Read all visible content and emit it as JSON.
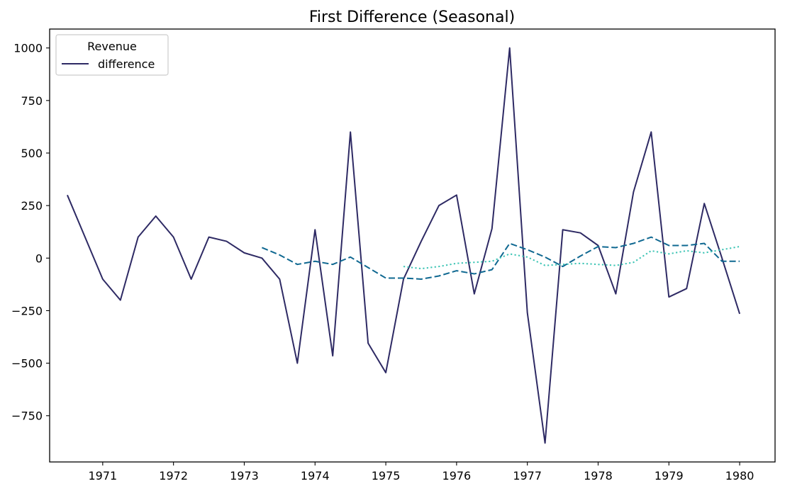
{
  "chart_data": {
    "type": "line",
    "title": "First Difference (Seasonal)",
    "xlabel": "",
    "ylabel": "",
    "xlim": [
      1970.25,
      1980.5
    ],
    "ylim": [
      -970,
      1090
    ],
    "x_ticks": [
      1971,
      1972,
      1973,
      1974,
      1975,
      1976,
      1977,
      1978,
      1979,
      1980
    ],
    "y_ticks": [
      -750,
      -500,
      -250,
      0,
      250,
      500,
      750,
      1000
    ],
    "grid": false,
    "legend": {
      "title": "Revenue",
      "placement": "top-left",
      "entries": [
        "difference"
      ]
    },
    "series": [
      {
        "name": "difference",
        "style": "solid",
        "color": "#2e2a64",
        "x": [
          1970.5,
          1970.75,
          1971,
          1971.25,
          1971.5,
          1971.75,
          1972,
          1972.25,
          1972.5,
          1972.75,
          1973,
          1973.25,
          1973.5,
          1973.75,
          1974,
          1974.25,
          1974.5,
          1974.75,
          1975,
          1975.25,
          1975.5,
          1975.75,
          1976,
          1976.25,
          1976.5,
          1976.75,
          1977,
          1977.25,
          1977.5,
          1977.75,
          1978,
          1978.25,
          1978.5,
          1978.75,
          1979,
          1979.25,
          1979.5,
          1979.75,
          1980
        ],
        "values": [
          300,
          100,
          -100,
          -200,
          100,
          200,
          100,
          -100,
          100,
          80,
          25,
          0,
          -100,
          -500,
          135,
          -465,
          600,
          -405,
          -545,
          -100,
          80,
          250,
          300,
          -170,
          140,
          1000,
          -260,
          -880,
          135,
          120,
          60,
          -170,
          315,
          600,
          -185,
          -145,
          260,
          0,
          -265
        ]
      },
      {
        "style": "dashed",
        "color": "#0f6891",
        "x": [
          1973.25,
          1973.5,
          1973.75,
          1974,
          1974.25,
          1974.5,
          1974.75,
          1975,
          1975.25,
          1975.5,
          1975.75,
          1976,
          1976.25,
          1976.5,
          1976.75,
          1977,
          1977.25,
          1977.5,
          1977.75,
          1978,
          1978.25,
          1978.5,
          1978.75,
          1979,
          1979.25,
          1979.5,
          1979.75,
          1980
        ],
        "values": [
          50,
          15,
          -30,
          -15,
          -30,
          5,
          -45,
          -95,
          -95,
          -100,
          -85,
          -60,
          -75,
          -55,
          70,
          40,
          5,
          -40,
          10,
          55,
          50,
          70,
          100,
          60,
          60,
          70,
          -15,
          -15
        ]
      },
      {
        "style": "dotted",
        "color": "#3cc4b4",
        "x": [
          1975.25,
          1975.5,
          1975.75,
          1976,
          1976.25,
          1976.5,
          1976.75,
          1977,
          1977.25,
          1977.5,
          1977.75,
          1978,
          1978.25,
          1978.5,
          1978.75,
          1979,
          1979.25,
          1979.5,
          1979.75,
          1980
        ],
        "values": [
          -40,
          -50,
          -40,
          -25,
          -20,
          -15,
          20,
          5,
          -35,
          -30,
          -25,
          -30,
          -35,
          -20,
          35,
          20,
          35,
          25,
          40,
          55
        ]
      }
    ]
  }
}
